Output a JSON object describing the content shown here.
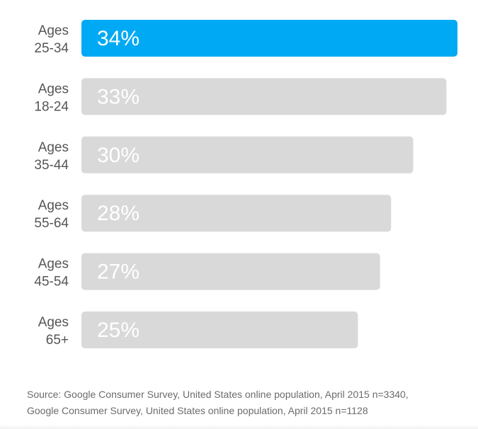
{
  "chart_data": {
    "type": "bar",
    "orientation": "horizontal",
    "categories": [
      [
        "Ages",
        "25-34"
      ],
      [
        "Ages",
        "18-24"
      ],
      [
        "Ages",
        "35-44"
      ],
      [
        "Ages",
        "55-64"
      ],
      [
        "Ages",
        "45-54"
      ],
      [
        "Ages",
        "65+"
      ]
    ],
    "values": [
      34,
      33,
      30,
      28,
      27,
      25
    ],
    "value_labels": [
      "34%",
      "33%",
      "30%",
      "28%",
      "27%",
      "25%"
    ],
    "unit": "%",
    "highlight_index": 0,
    "xlim": [
      0,
      34
    ],
    "grid": false,
    "legend": "none"
  },
  "colors": {
    "highlight": "#00a9f4",
    "bar": "#d9d9d9",
    "value_text": "#ffffff",
    "category_text": "#555555"
  },
  "source": {
    "line1": "Source: Google Consumer Survey, United States online population, April 2015 n=3340,",
    "line2": "Google Consumer Survey, United States online population, April 2015 n=1128"
  }
}
